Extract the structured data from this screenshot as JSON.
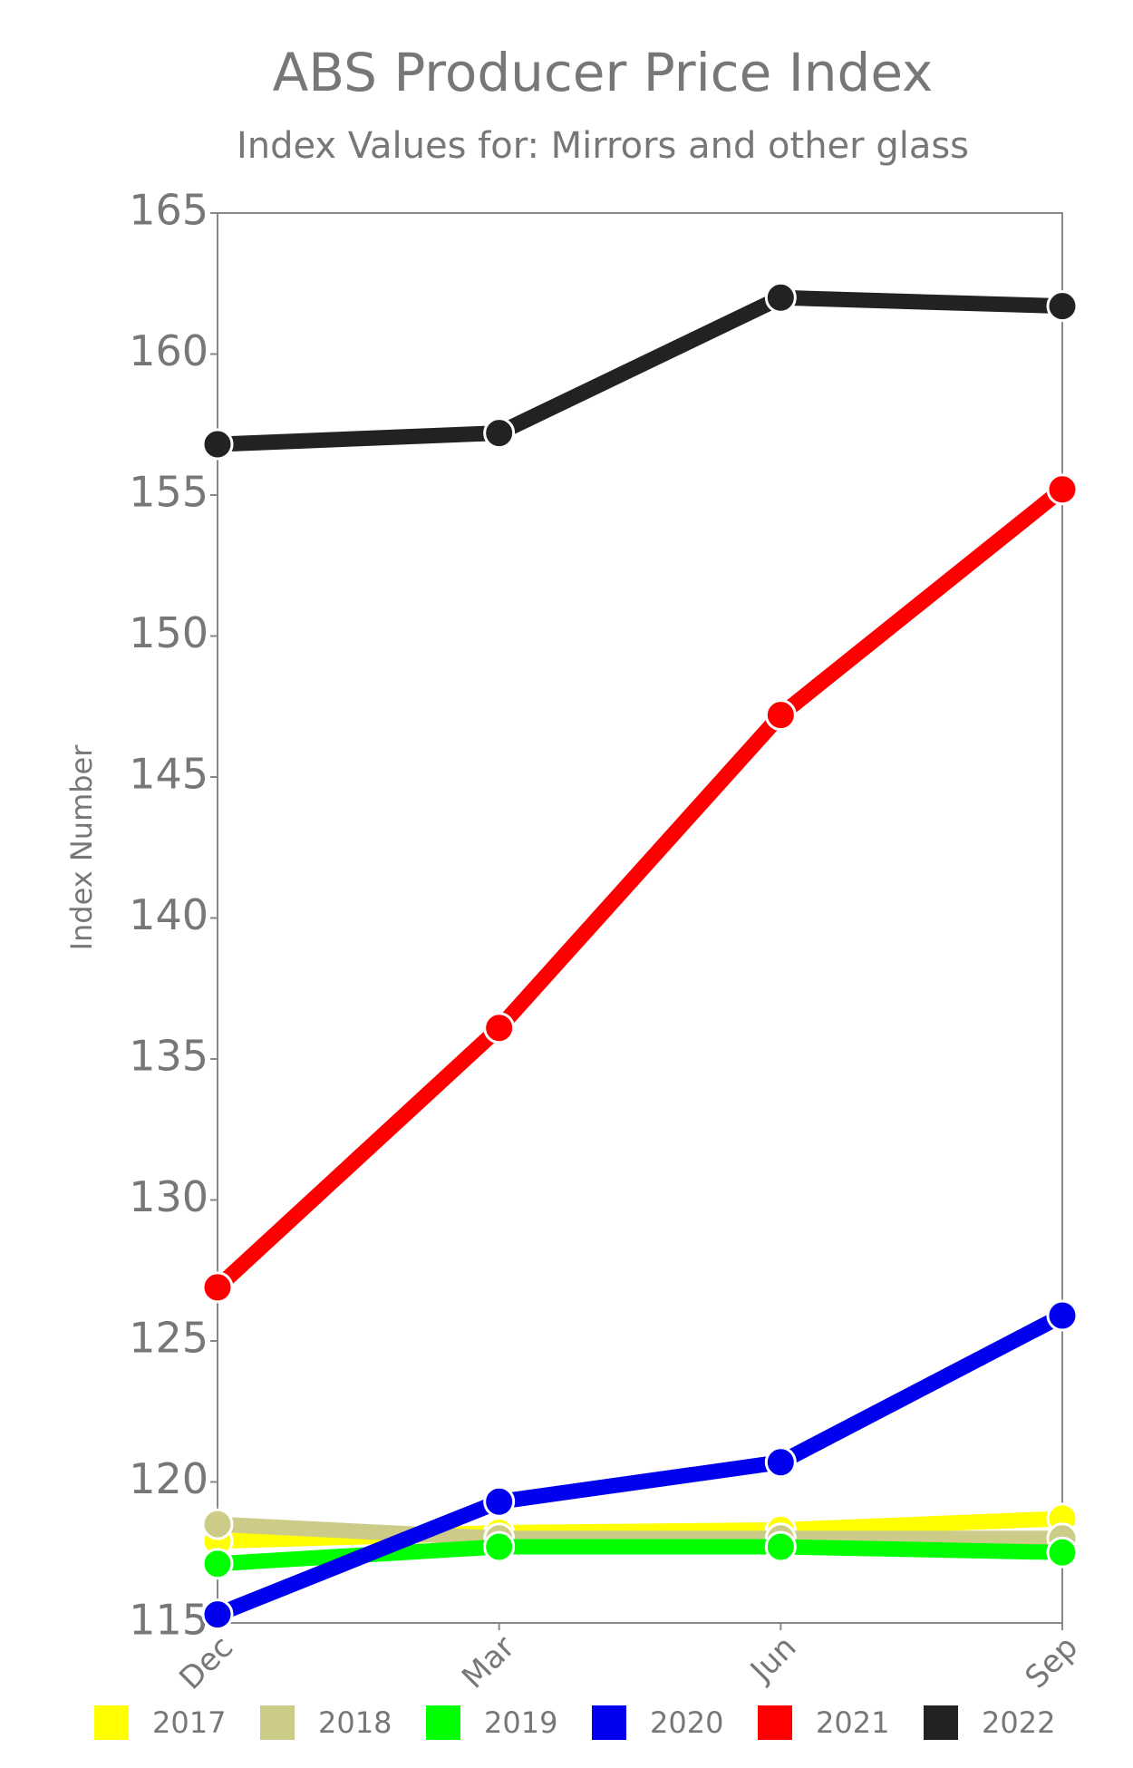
{
  "chart_data": {
    "type": "line",
    "title": "ABS Producer Price Index",
    "subtitle": "Index Values for: Mirrors and other glass",
    "y_label": "Index Number",
    "categories": [
      "Dec",
      "Mar",
      "Jun",
      "Sep"
    ],
    "ylim": [
      115,
      165
    ],
    "yticks": [
      115,
      120,
      125,
      130,
      135,
      140,
      145,
      150,
      155,
      160,
      165
    ],
    "series": [
      {
        "name": "2017",
        "color": "#ffff00",
        "values": [
          117.9,
          118.2,
          118.3,
          118.7
        ]
      },
      {
        "name": "2018",
        "color": "#cccc88",
        "values": [
          118.5,
          118.0,
          118.0,
          118.0
        ]
      },
      {
        "name": "2019",
        "color": "#00ff00",
        "values": [
          117.1,
          117.7,
          117.7,
          117.5
        ]
      },
      {
        "name": "2020",
        "color": "#0000ee",
        "values": [
          115.3,
          119.3,
          120.7,
          125.9
        ]
      },
      {
        "name": "2021",
        "color": "#ff0000",
        "values": [
          126.9,
          136.1,
          147.2,
          155.2
        ]
      },
      {
        "name": "2022",
        "color": "#222222",
        "values": [
          156.8,
          157.2,
          162.0,
          161.7
        ]
      }
    ]
  }
}
